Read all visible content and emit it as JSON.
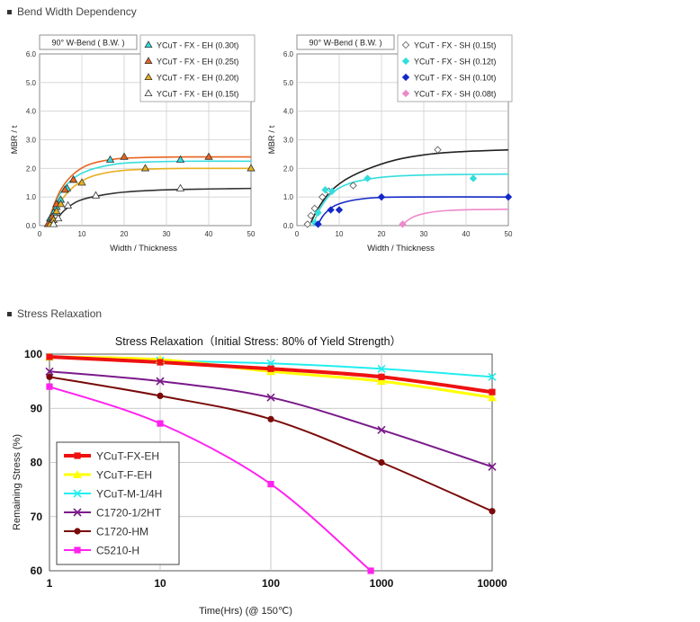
{
  "sections": {
    "bend": "Bend Width Dependency",
    "stress": "Stress Relaxation"
  },
  "chart_data": [
    {
      "type": "scatter",
      "box_label": "90°  W-Bend ( B.W. )",
      "xlabel": "Width / Thickness",
      "ylabel": "MBR / t",
      "xlim": [
        0,
        50
      ],
      "ylim": [
        0,
        6
      ],
      "xticks": [
        "0",
        "10",
        "20",
        "30",
        "40",
        "50"
      ],
      "yticks": [
        "0.0",
        "1.0",
        "2.0",
        "3.0",
        "4.0",
        "5.0",
        "6.0"
      ],
      "grid": true,
      "legend": "top-right",
      "series": [
        {
          "name": "YCuT - FX - EH  (0.30t)",
          "color": "#33dddd",
          "marker": "triangle",
          "fill": true,
          "points": [
            [
              2.5,
              0.25
            ],
            [
              3.3,
              0.45
            ],
            [
              4,
              0.65
            ],
            [
              5,
              0.9
            ],
            [
              6.5,
              1.3
            ],
            [
              8,
              1.6
            ],
            [
              16.7,
              2.3
            ],
            [
              33.3,
              2.3
            ]
          ],
          "curve": [
            [
              2,
              0
            ],
            [
              3,
              0.5
            ],
            [
              5,
              1.15
            ],
            [
              8,
              1.65
            ],
            [
              12,
              1.95
            ],
            [
              18,
              2.15
            ],
            [
              25,
              2.22
            ],
            [
              35,
              2.25
            ],
            [
              50,
              2.25
            ]
          ]
        },
        {
          "name": "YCuT - FX - EH  (0.25t)",
          "color": "#e8641e",
          "marker": "triangle",
          "fill": true,
          "points": [
            [
              2,
              0.05
            ],
            [
              3,
              0.3
            ],
            [
              4,
              0.75
            ],
            [
              6,
              1.25
            ],
            [
              8,
              1.6
            ],
            [
              20,
              2.4
            ],
            [
              40,
              2.4
            ]
          ],
          "curve": [
            [
              2,
              0
            ],
            [
              3,
              0.55
            ],
            [
              5,
              1.25
            ],
            [
              8,
              1.8
            ],
            [
              12,
              2.15
            ],
            [
              18,
              2.33
            ],
            [
              25,
              2.38
            ],
            [
              35,
              2.4
            ],
            [
              50,
              2.4
            ]
          ]
        },
        {
          "name": "YCuT - FX - EH  (0.20t)",
          "color": "#e8b020",
          "marker": "triangle",
          "fill": true,
          "points": [
            [
              2.5,
              0.05
            ],
            [
              3.3,
              0.2
            ],
            [
              4,
              0.5
            ],
            [
              5,
              0.75
            ],
            [
              10,
              1.5
            ],
            [
              25,
              2.0
            ],
            [
              50,
              2.0
            ]
          ],
          "curve": [
            [
              2.5,
              0
            ],
            [
              3.5,
              0.4
            ],
            [
              5,
              0.85
            ],
            [
              8,
              1.35
            ],
            [
              12,
              1.7
            ],
            [
              18,
              1.9
            ],
            [
              25,
              1.97
            ],
            [
              35,
              2.0
            ],
            [
              50,
              2.0
            ]
          ]
        },
        {
          "name": "YCuT - FX - EH  (0.15t)",
          "color": "#333333",
          "marker": "triangle",
          "fill": false,
          "points": [
            [
              3.3,
              0.05
            ],
            [
              4.4,
              0.25
            ],
            [
              6.7,
              0.7
            ],
            [
              13.3,
              1.05
            ],
            [
              33.3,
              1.3
            ]
          ],
          "curve": [
            [
              3.3,
              0
            ],
            [
              4.5,
              0.3
            ],
            [
              6,
              0.55
            ],
            [
              9,
              0.85
            ],
            [
              13,
              1.02
            ],
            [
              20,
              1.17
            ],
            [
              30,
              1.25
            ],
            [
              40,
              1.28
            ],
            [
              50,
              1.3
            ]
          ]
        }
      ]
    },
    {
      "type": "scatter",
      "box_label": "90°  W-Bend ( B.W. )",
      "xlabel": "Width / Thickness",
      "ylabel": "MBR / t",
      "xlim": [
        0,
        50
      ],
      "ylim": [
        0,
        6
      ],
      "xticks": [
        "0",
        "10",
        "20",
        "30",
        "40",
        "50"
      ],
      "yticks": [
        "0.0",
        "1.0",
        "2.0",
        "3.0",
        "4.0",
        "5.0",
        "6.0"
      ],
      "grid": true,
      "legend": "top-right",
      "series": [
        {
          "name": "YCuT - FX - SH  (0.15t)",
          "color": "#555555",
          "marker": "diamond",
          "fill": false,
          "points": [
            [
              2.5,
              0.05
            ],
            [
              3.3,
              0.35
            ],
            [
              4.2,
              0.6
            ],
            [
              6,
              1.0
            ],
            [
              7.5,
              1.2
            ],
            [
              13.3,
              1.4
            ],
            [
              33.3,
              2.65
            ]
          ],
          "curve": [
            [
              3.3,
              0.1
            ],
            [
              5,
              0.6
            ],
            [
              8,
              1.2
            ],
            [
              12,
              1.65
            ],
            [
              18,
              2.05
            ],
            [
              25,
              2.35
            ],
            [
              35,
              2.55
            ],
            [
              50,
              2.65
            ]
          ]
        },
        {
          "name": "YCuT - FX - SH  (0.12t)",
          "color": "#33dddd",
          "marker": "diamond",
          "fill": true,
          "points": [
            [
              4.2,
              0.1
            ],
            [
              5,
              0.45
            ],
            [
              6.7,
              1.25
            ],
            [
              8.3,
              1.2
            ],
            [
              16.7,
              1.65
            ],
            [
              41.7,
              1.65
            ]
          ],
          "curve": [
            [
              4,
              0.1
            ],
            [
              5.5,
              0.6
            ],
            [
              8,
              1.1
            ],
            [
              12,
              1.45
            ],
            [
              18,
              1.65
            ],
            [
              25,
              1.74
            ],
            [
              35,
              1.78
            ],
            [
              50,
              1.8
            ]
          ]
        },
        {
          "name": "YCuT - FX - SH  (0.10t)",
          "color": "#1428c8",
          "marker": "diamond",
          "fill": true,
          "points": [
            [
              5,
              0.05
            ],
            [
              8,
              0.55
            ],
            [
              10,
              0.55
            ],
            [
              20,
              1.0
            ],
            [
              50,
              1.0
            ]
          ],
          "curve": [
            [
              5,
              0.05
            ],
            [
              6.5,
              0.4
            ],
            [
              9,
              0.7
            ],
            [
              13,
              0.88
            ],
            [
              18,
              0.97
            ],
            [
              25,
              1.0
            ],
            [
              50,
              1.0
            ]
          ]
        },
        {
          "name": "YCuT - FX - SH  (0.08t)",
          "color": "#ee88cc",
          "marker": "diamond",
          "fill": true,
          "points": [
            [
              25,
              0.05
            ]
          ],
          "curve": [
            [
              25,
              0.05
            ],
            [
              27.5,
              0.3
            ],
            [
              31,
              0.45
            ],
            [
              36,
              0.53
            ],
            [
              42,
              0.56
            ],
            [
              50,
              0.57
            ]
          ]
        }
      ]
    },
    {
      "type": "line",
      "title": "Stress Relaxation（Initial Stress: 80% of Yield Strength）",
      "xlabel": "Time(Hrs) (@ 150℃)",
      "ylabel": "Remaining Stress (%)",
      "xscale": "log",
      "xlim": [
        1,
        10000
      ],
      "ylim": [
        60,
        100
      ],
      "xticks": [
        "1",
        "10",
        "100",
        "1000",
        "10000"
      ],
      "yticks": [
        "60",
        "70",
        "80",
        "90",
        "100"
      ],
      "grid": true,
      "legend": "bottom-left",
      "series": [
        {
          "name": "YCuT-FX-EH",
          "color": "#ee1111",
          "marker": "square",
          "width": 4,
          "points": [
            [
              1,
              99.5
            ],
            [
              10,
              98.5
            ],
            [
              100,
              97.3
            ],
            [
              1000,
              95.8
            ],
            [
              10000,
              93
            ]
          ]
        },
        {
          "name": "YCuT-F-EH",
          "color": "#ffff00",
          "marker": "triangle",
          "width": 3,
          "points": [
            [
              1,
              99.5
            ],
            [
              10,
              99
            ],
            [
              100,
              96.8
            ],
            [
              1000,
              95
            ],
            [
              10000,
              92
            ]
          ]
        },
        {
          "name": "YCuT-M-1/4H",
          "color": "#22eeee",
          "marker": "x",
          "width": 2,
          "points": [
            [
              1,
              99.5
            ],
            [
              10,
              98.8
            ],
            [
              100,
              98.3
            ],
            [
              1000,
              97.3
            ],
            [
              10000,
              95.8
            ]
          ]
        },
        {
          "name": "C1720-1/2HT",
          "color": "#7a1a8a",
          "marker": "x",
          "width": 2,
          "points": [
            [
              1,
              96.8
            ],
            [
              10,
              95
            ],
            [
              100,
              92
            ],
            [
              1000,
              86
            ],
            [
              10000,
              79.2
            ]
          ]
        },
        {
          "name": "C1720-HM",
          "color": "#7a0a0a",
          "marker": "circle",
          "width": 2,
          "points": [
            [
              1,
              95.8
            ],
            [
              10,
              92.3
            ],
            [
              100,
              88
            ],
            [
              1000,
              80
            ],
            [
              10000,
              71
            ]
          ]
        },
        {
          "name": "C5210-H",
          "color": "#ff22ee",
          "marker": "square",
          "width": 2,
          "points": [
            [
              1,
              94
            ],
            [
              10,
              87.2
            ],
            [
              100,
              76
            ],
            [
              800,
              60
            ]
          ]
        }
      ]
    }
  ]
}
